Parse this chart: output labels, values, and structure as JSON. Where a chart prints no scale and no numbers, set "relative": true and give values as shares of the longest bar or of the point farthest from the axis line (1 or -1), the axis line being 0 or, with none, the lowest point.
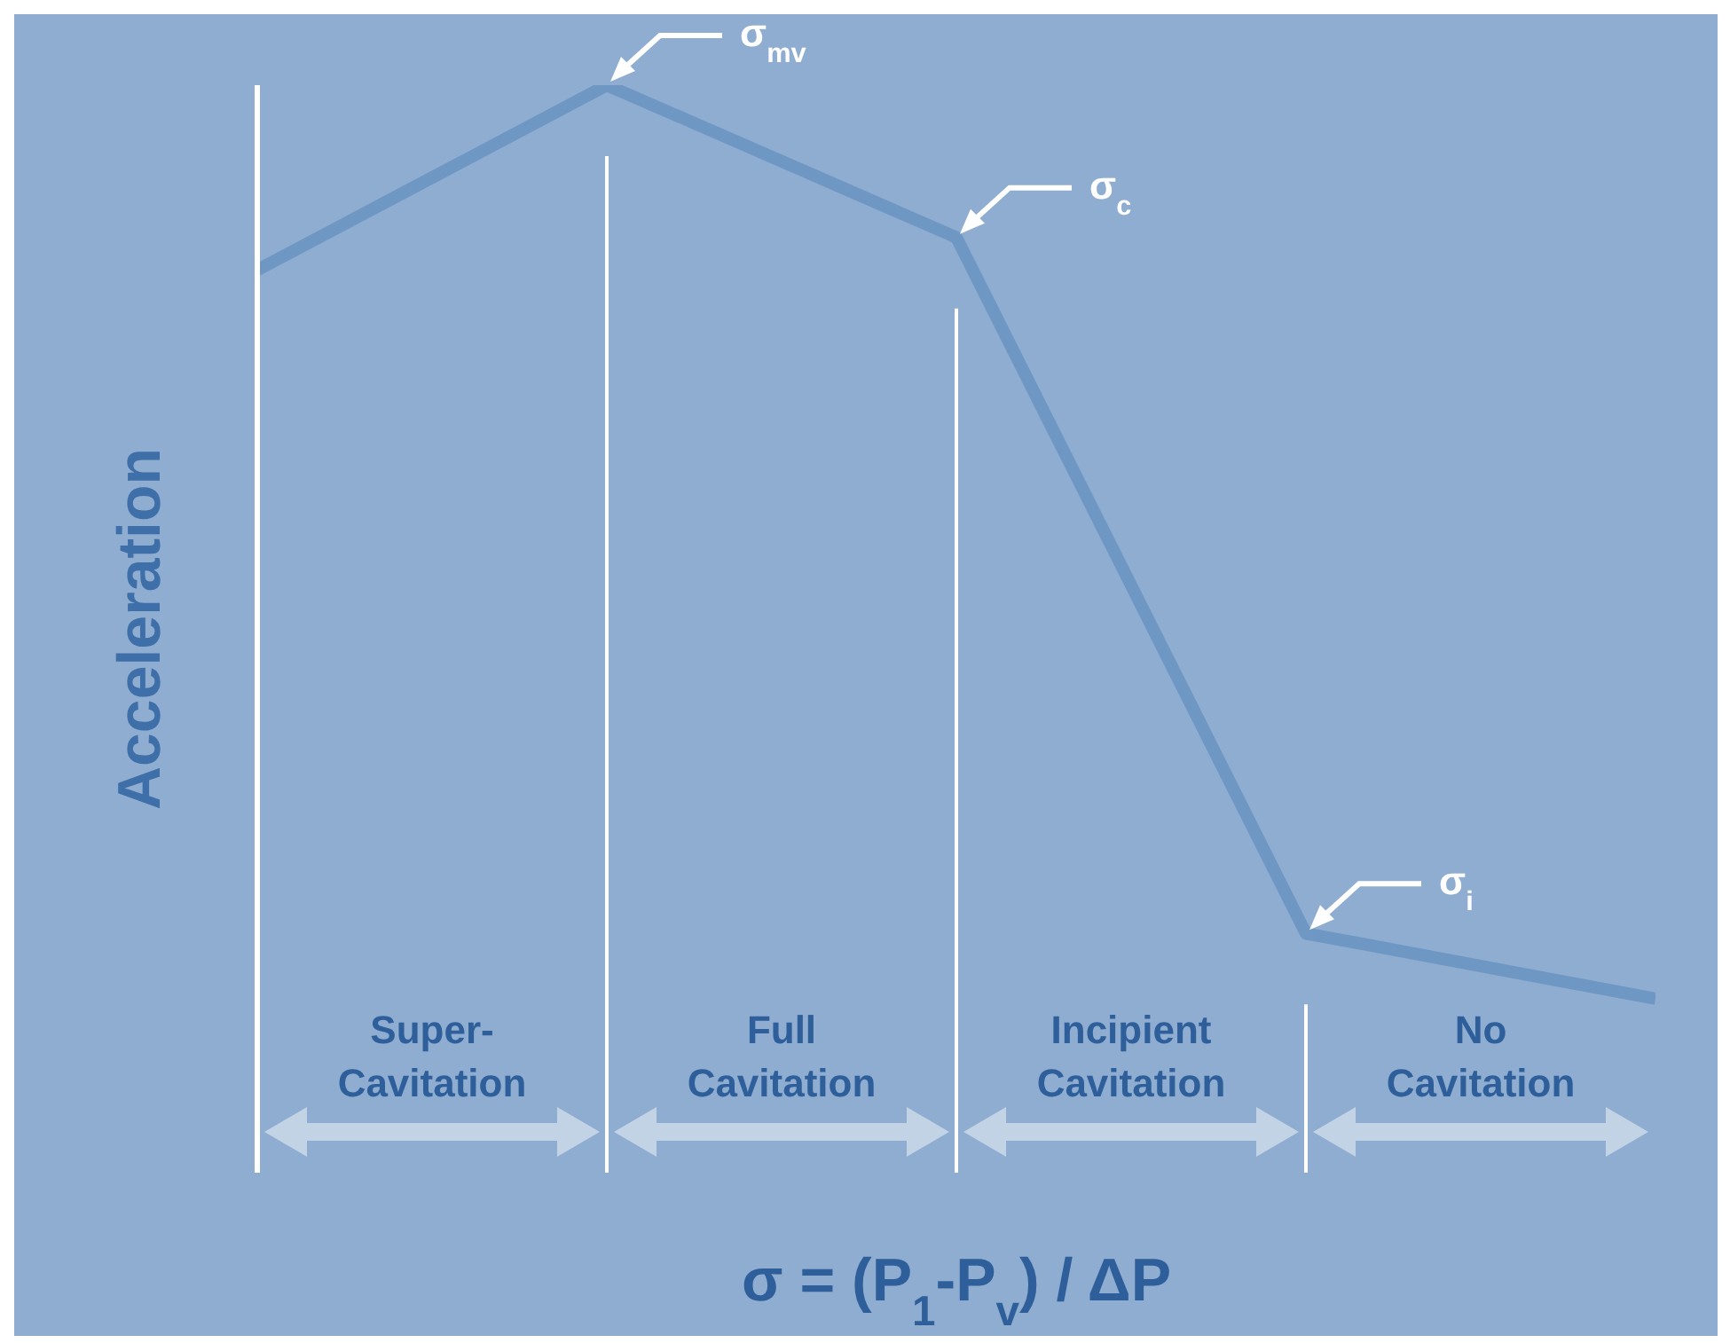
{
  "chart_data": {
    "type": "line",
    "relative": true,
    "xlabel": "σ = (P$_{1}$-P$_{v}$) / ΔP",
    "ylabel": "Acceleration",
    "categories": [
      null,
      null,
      null,
      null,
      null
    ],
    "series": [
      {
        "color": "#6f97c4",
        "values": [
          0.83,
          1,
          0.86,
          0.22,
          0.16
        ]
      }
    ],
    "annotations": [
      "σ$_{mv}$",
      "σ$_{c}$",
      "σ$_{i}$",
      "Super-\nCavitation",
      "Full\nCavitation",
      "Incipient\nCavitation",
      "No\nCavitation"
    ]
  }
}
